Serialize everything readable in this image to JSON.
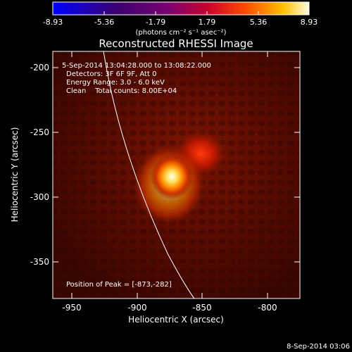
{
  "colorbar": {
    "ticks": [
      "-8.93",
      "-5.36",
      "-1.79",
      "1.79",
      "5.36",
      "8.93"
    ],
    "units_label": "(photons cm⁻² s⁻¹ asec⁻²)"
  },
  "title": "Reconstructed RHESSI Image",
  "info": {
    "line1": "5-Sep-2014 13:04:28.000 to 13:08:22.000",
    "line2": "Detectors: 3F 6F 9F, Att 0",
    "line3": "Energy Range: 3.0 - 6.0 keV",
    "line4": "Clean    Total counts: 8.00E+04"
  },
  "peak": "Position of Peak = [-873,-282]",
  "axes": {
    "xlabel": "Heliocentric X (arcsec)",
    "ylabel": "Heliocentric Y (arcsec)",
    "xticks": [
      "-950",
      "-900",
      "-850",
      "-800"
    ],
    "yticks": [
      "-200",
      "-250",
      "-300",
      "-350"
    ],
    "xlim": [
      -965,
      -775
    ],
    "ylim": [
      -378,
      -188
    ]
  },
  "footer_date": "8-Sep-2014 03:06",
  "colors": {
    "background": "#000000",
    "text": "#ffffff"
  }
}
